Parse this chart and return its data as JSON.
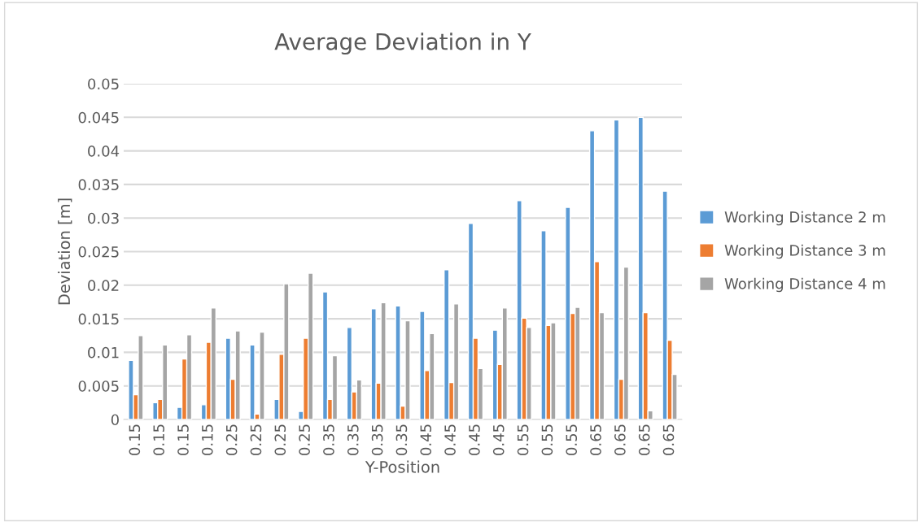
{
  "chart_data": {
    "type": "bar",
    "title": "Average Deviation in Y",
    "xlabel": "Y-Position",
    "ylabel": "Deviation [m]",
    "categories": [
      "0.15",
      "0.15",
      "0.15",
      "0.15",
      "0.25",
      "0.25",
      "0.25",
      "0.25",
      "0.35",
      "0.35",
      "0.35",
      "0.35",
      "0.45",
      "0.45",
      "0.45",
      "0.45",
      "0.55",
      "0.55",
      "0.55",
      "0.65",
      "0.65",
      "0.65",
      "0.65"
    ],
    "series": [
      {
        "name": "Working Distance 2 m",
        "color": "#5b9bd5",
        "values": [
          0.0088,
          0.0025,
          0.0018,
          0.0022,
          0.0121,
          0.0111,
          0.003,
          0.0012,
          0.019,
          0.0137,
          0.0165,
          0.0169,
          0.0161,
          0.0223,
          0.0292,
          0.0133,
          0.0326,
          0.0281,
          0.0316,
          0.043,
          0.0446,
          0.045,
          0.034
        ]
      },
      {
        "name": "Working Distance 3 m",
        "color": "#ed7d31",
        "values": [
          0.0037,
          0.003,
          0.009,
          0.0115,
          0.006,
          0.0008,
          0.0097,
          0.0121,
          0.003,
          0.0041,
          0.0054,
          0.002,
          0.0073,
          0.0055,
          0.0121,
          0.0082,
          0.0151,
          0.014,
          0.0158,
          0.0235,
          0.006,
          0.0159,
          0.0118
        ]
      },
      {
        "name": "Working Distance 4 m",
        "color": "#a5a5a5",
        "values": [
          0.0125,
          0.0111,
          0.0126,
          0.0166,
          0.0132,
          0.013,
          0.0202,
          0.0218,
          0.0095,
          0.0059,
          0.0174,
          0.0147,
          0.0128,
          0.0172,
          0.0076,
          0.0166,
          0.0137,
          0.0144,
          0.0167,
          0.0159,
          0.0227,
          0.0013,
          0.0067
        ]
      }
    ],
    "ylim": [
      0,
      0.05
    ],
    "yticks": [
      0,
      0.005,
      0.01,
      0.015,
      0.02,
      0.025,
      0.03,
      0.035,
      0.04,
      0.045,
      0.05
    ],
    "grid": "y",
    "legend": "right"
  }
}
